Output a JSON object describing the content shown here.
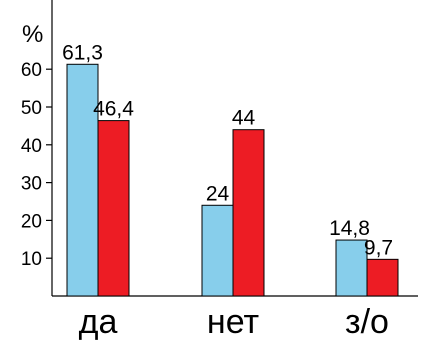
{
  "chart_data": {
    "type": "bar",
    "title": "",
    "xlabel": "",
    "ylabel": "%",
    "categories": [
      "да",
      "нет",
      "з/о"
    ],
    "series": [
      {
        "values": [
          61.3,
          24,
          14.8
        ],
        "labels": [
          "61,3",
          "24",
          "14,8"
        ],
        "color": "#87ceeb"
      },
      {
        "values": [
          46.4,
          44,
          9.7
        ],
        "labels": [
          "46,4",
          "44",
          "9,7"
        ],
        "color": "#ed1c24"
      }
    ],
    "ylim": [
      0,
      80
    ],
    "yticks": [
      10,
      20,
      30,
      40,
      50,
      60
    ],
    "ytick_labels": [
      "10",
      "20",
      "30",
      "40",
      "50",
      "60"
    ],
    "grid": false,
    "legend": "none"
  }
}
